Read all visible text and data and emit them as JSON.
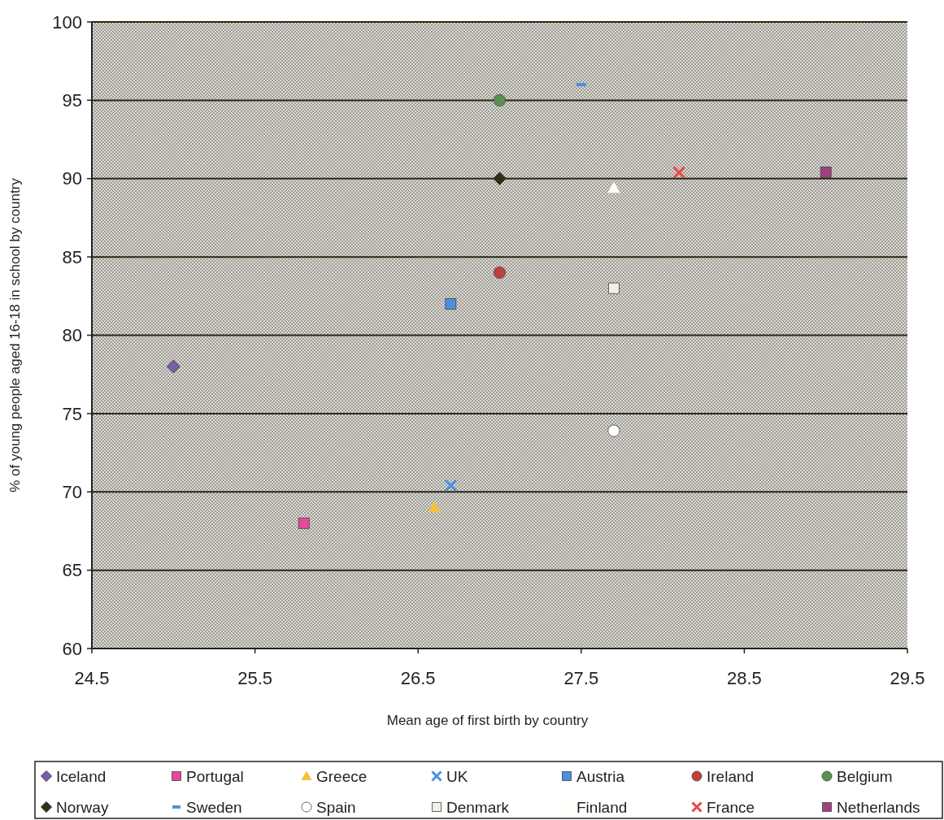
{
  "chart_data": {
    "type": "scatter",
    "xlabel": "Mean age of first birth by country",
    "ylabel": "% of young people aged 16-18 in school by country",
    "xlim": [
      24.5,
      29.5
    ],
    "xticks": [
      24.5,
      25.5,
      26.5,
      27.5,
      28.5,
      29.5
    ],
    "ylim": [
      60,
      100
    ],
    "yticks": [
      60,
      65,
      70,
      75,
      80,
      85,
      90,
      95,
      100
    ],
    "grid": "y",
    "legend": "bottom",
    "series": [
      {
        "name": "Iceland",
        "color": "#7a5fa8",
        "marker": "diamond",
        "x": [
          25.0
        ],
        "values": [
          78
        ]
      },
      {
        "name": "Portugal",
        "color": "#e8489a",
        "marker": "square",
        "x": [
          25.8
        ],
        "values": [
          68
        ]
      },
      {
        "name": "Greece",
        "color": "#f5c040",
        "marker": "triangle",
        "x": [
          26.6
        ],
        "values": [
          69
        ]
      },
      {
        "name": "UK",
        "color": "#4a90e0",
        "marker": "cross",
        "x": [
          26.7
        ],
        "values": [
          70.4
        ]
      },
      {
        "name": "Austria",
        "color": "#4a90e0",
        "marker": "square",
        "x": [
          26.7
        ],
        "values": [
          82
        ]
      },
      {
        "name": "Ireland",
        "color": "#c04040",
        "marker": "circle",
        "x": [
          27.0
        ],
        "values": [
          84
        ]
      },
      {
        "name": "Belgium",
        "color": "#5a9050",
        "marker": "circle",
        "x": [
          27.0
        ],
        "values": [
          95
        ]
      },
      {
        "name": "Norway",
        "color": "#303018",
        "marker": "diamond",
        "x": [
          27.0
        ],
        "values": [
          90
        ]
      },
      {
        "name": "Sweden",
        "color": "#4a90e0",
        "x": [
          27.5
        ],
        "values": [
          96
        ]
      },
      {
        "name": "Spain",
        "color": "#ffffff",
        "marker": "circle",
        "x": [
          27.7
        ],
        "values": [
          73.9
        ]
      },
      {
        "name": "Denmark",
        "color": "#f0f0e8",
        "marker": "square",
        "x": [
          27.7
        ],
        "values": [
          83
        ]
      },
      {
        "name": "Finland",
        "color": "#fffff0",
        "marker": "triangle",
        "x": [
          27.7
        ],
        "values": [
          89.4
        ]
      },
      {
        "name": "France",
        "color": "#e84848",
        "marker": "cross",
        "x": [
          28.1
        ],
        "values": [
          90.4
        ]
      },
      {
        "name": "Netherlands",
        "color": "#a04080",
        "marker": "square",
        "x": [
          29.0
        ],
        "values": [
          90.4
        ]
      }
    ]
  }
}
